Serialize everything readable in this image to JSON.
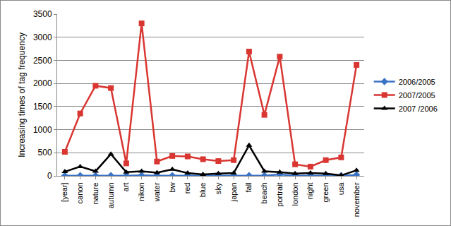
{
  "chart_data": {
    "type": "line",
    "y_label": "Increasing times of tag frequency",
    "categories": [
      "[year]",
      "canon",
      "nature",
      "autumn",
      "art",
      "nikon",
      "water",
      "bw",
      "red",
      "blue",
      "sky",
      "japan",
      "fall",
      "beach",
      "portrait",
      "london",
      "night",
      "green",
      "usa",
      "november"
    ],
    "series": [
      {
        "name": "2006/2005",
        "color": "#3a72c4",
        "marker": "diamond",
        "line_style": "solid",
        "values": [
          2,
          5,
          3,
          5,
          2,
          10,
          3,
          5,
          3,
          2,
          3,
          3,
          5,
          5,
          30,
          3,
          5,
          3,
          5,
          20
        ]
      },
      {
        "name": "2007/2005",
        "color": "#d93632",
        "marker": "square",
        "line_style": "solid",
        "values": [
          520,
          1350,
          1950,
          1900,
          270,
          3300,
          310,
          430,
          420,
          360,
          320,
          340,
          2690,
          1320,
          2580,
          250,
          200,
          340,
          400,
          2400
        ]
      },
      {
        "name": "2007 /2006",
        "color": "#000000",
        "marker": "triangle-up",
        "line_style": "solid",
        "values": [
          90,
          200,
          100,
          470,
          80,
          100,
          70,
          140,
          60,
          30,
          50,
          60,
          660,
          100,
          80,
          50,
          60,
          50,
          10,
          120
        ]
      }
    ],
    "ylim": [
      0,
      3500
    ],
    "yticks": [
      0,
      500,
      1000,
      1500,
      2000,
      2500,
      3000,
      3500
    ],
    "grid": true,
    "legend": "right"
  }
}
